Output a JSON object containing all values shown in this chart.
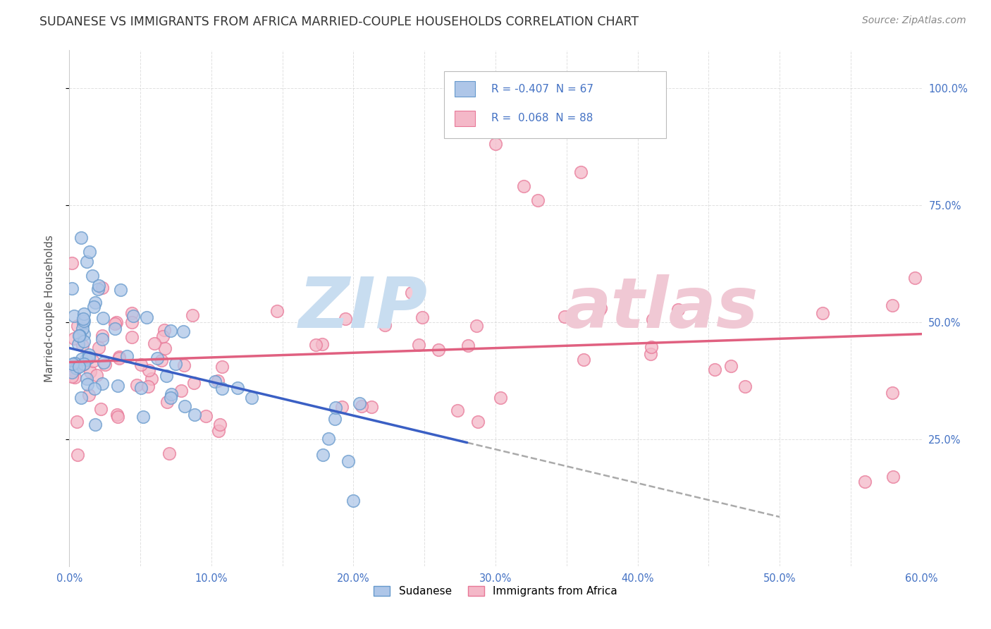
{
  "title": "SUDANESE VS IMMIGRANTS FROM AFRICA MARRIED-COUPLE HOUSEHOLDS CORRELATION CHART",
  "source": "Source: ZipAtlas.com",
  "ylabel": "Married-couple Households",
  "xlim": [
    0.0,
    0.6
  ],
  "ylim": [
    -0.02,
    1.08
  ],
  "xtick_labels": [
    "0.0%",
    "",
    "10.0%",
    "",
    "20.0%",
    "",
    "30.0%",
    "",
    "40.0%",
    "",
    "50.0%",
    "",
    "60.0%"
  ],
  "xtick_vals": [
    0.0,
    0.05,
    0.1,
    0.15,
    0.2,
    0.25,
    0.3,
    0.35,
    0.4,
    0.45,
    0.5,
    0.55,
    0.6
  ],
  "ytick_labels": [
    "100.0%",
    "75.0%",
    "50.0%",
    "25.0%"
  ],
  "ytick_vals": [
    1.0,
    0.75,
    0.5,
    0.25
  ],
  "legend_label1": "Sudanese",
  "legend_label2": "Immigrants from Africa",
  "color_blue_fill": "#aec6e8",
  "color_blue_edge": "#6699cc",
  "color_pink_fill": "#f4b8c8",
  "color_pink_edge": "#e87898",
  "color_blue_line": "#3a5fc4",
  "color_pink_line": "#e06080",
  "color_text_blue": "#4472c4",
  "color_grid": "#cccccc",
  "background_color": "#ffffff",
  "watermark_zip_color": "#c8ddf0",
  "watermark_atlas_color": "#f0c8d4",
  "sud_line_x0": 0.0,
  "sud_line_y0": 0.445,
  "sud_line_slope": -0.72,
  "sud_line_solid_end": 0.28,
  "sud_line_dash_end": 0.5,
  "afr_line_x0": 0.0,
  "afr_line_y0": 0.415,
  "afr_line_slope": 0.1
}
